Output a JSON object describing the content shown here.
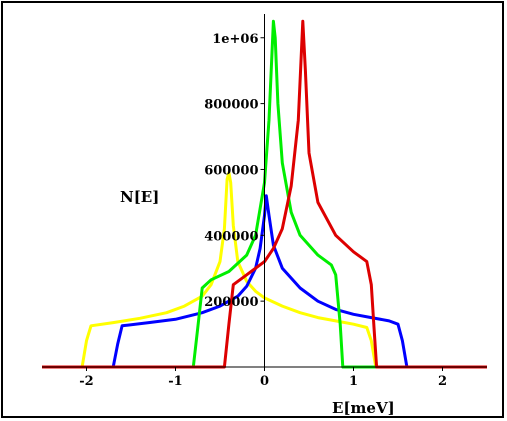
{
  "chart_data": {
    "type": "line",
    "xlabel": "E[meV]",
    "ylabel": "N[E]",
    "xlim": [
      -2.5,
      2.5
    ],
    "ylim": [
      0,
      1060000
    ],
    "x_ticks": [
      {
        "value": -2,
        "label": "-2"
      },
      {
        "value": -1,
        "label": "-1"
      },
      {
        "value": 0,
        "label": "0"
      },
      {
        "value": 1,
        "label": "1"
      },
      {
        "value": 2,
        "label": "2"
      }
    ],
    "y_ticks": [
      {
        "value": 200000,
        "label": "200000"
      },
      {
        "value": 400000,
        "label": "400000"
      },
      {
        "value": 600000,
        "label": "600000"
      },
      {
        "value": 800000,
        "label": "800000"
      },
      {
        "value": 1000000,
        "label": "1e+06"
      }
    ],
    "grid": false,
    "series": [
      {
        "color": "#ffff00",
        "points": [
          [
            -2.5,
            0
          ],
          [
            -2.05,
            0
          ],
          [
            -2.0,
            80000
          ],
          [
            -1.95,
            125000
          ],
          [
            -1.7,
            135000
          ],
          [
            -1.4,
            148000
          ],
          [
            -1.1,
            165000
          ],
          [
            -0.9,
            185000
          ],
          [
            -0.7,
            215000
          ],
          [
            -0.6,
            250000
          ],
          [
            -0.5,
            320000
          ],
          [
            -0.45,
            420000
          ],
          [
            -0.42,
            570000
          ],
          [
            -0.4,
            590000
          ],
          [
            -0.38,
            560000
          ],
          [
            -0.35,
            430000
          ],
          [
            -0.3,
            320000
          ],
          [
            -0.2,
            260000
          ],
          [
            -0.1,
            230000
          ],
          [
            0.0,
            210000
          ],
          [
            0.2,
            185000
          ],
          [
            0.4,
            165000
          ],
          [
            0.6,
            150000
          ],
          [
            0.8,
            140000
          ],
          [
            1.0,
            130000
          ],
          [
            1.15,
            120000
          ],
          [
            1.2,
            80000
          ],
          [
            1.25,
            0
          ],
          [
            2.5,
            0
          ]
        ]
      },
      {
        "color": "#0000ff",
        "points": [
          [
            -2.5,
            0
          ],
          [
            -1.7,
            0
          ],
          [
            -1.65,
            70000
          ],
          [
            -1.6,
            125000
          ],
          [
            -1.3,
            135000
          ],
          [
            -1.0,
            145000
          ],
          [
            -0.7,
            165000
          ],
          [
            -0.5,
            185000
          ],
          [
            -0.3,
            215000
          ],
          [
            -0.2,
            245000
          ],
          [
            -0.1,
            300000
          ],
          [
            -0.05,
            360000
          ],
          [
            0.0,
            460000
          ],
          [
            0.02,
            520000
          ],
          [
            0.05,
            460000
          ],
          [
            0.1,
            370000
          ],
          [
            0.2,
            300000
          ],
          [
            0.4,
            240000
          ],
          [
            0.6,
            200000
          ],
          [
            0.8,
            175000
          ],
          [
            1.0,
            160000
          ],
          [
            1.2,
            150000
          ],
          [
            1.4,
            140000
          ],
          [
            1.5,
            130000
          ],
          [
            1.55,
            80000
          ],
          [
            1.6,
            0
          ],
          [
            2.5,
            0
          ]
        ]
      },
      {
        "color": "#00ee00",
        "points": [
          [
            -2.5,
            0
          ],
          [
            -0.8,
            0
          ],
          [
            -0.75,
            120000
          ],
          [
            -0.7,
            240000
          ],
          [
            -0.6,
            265000
          ],
          [
            -0.4,
            290000
          ],
          [
            -0.2,
            340000
          ],
          [
            -0.1,
            400000
          ],
          [
            0.0,
            560000
          ],
          [
            0.05,
            750000
          ],
          [
            0.1,
            1050000
          ],
          [
            0.12,
            1000000
          ],
          [
            0.15,
            800000
          ],
          [
            0.2,
            620000
          ],
          [
            0.3,
            470000
          ],
          [
            0.4,
            400000
          ],
          [
            0.6,
            340000
          ],
          [
            0.75,
            310000
          ],
          [
            0.8,
            280000
          ],
          [
            0.85,
            130000
          ],
          [
            0.88,
            0
          ],
          [
            2.5,
            0
          ]
        ]
      },
      {
        "color": "#dd0000",
        "points": [
          [
            -2.5,
            0
          ],
          [
            -0.45,
            0
          ],
          [
            -0.4,
            130000
          ],
          [
            -0.35,
            250000
          ],
          [
            -0.2,
            280000
          ],
          [
            0.0,
            320000
          ],
          [
            0.1,
            360000
          ],
          [
            0.2,
            420000
          ],
          [
            0.3,
            550000
          ],
          [
            0.38,
            750000
          ],
          [
            0.43,
            1050000
          ],
          [
            0.46,
            900000
          ],
          [
            0.5,
            650000
          ],
          [
            0.6,
            500000
          ],
          [
            0.8,
            400000
          ],
          [
            1.0,
            350000
          ],
          [
            1.15,
            320000
          ],
          [
            1.2,
            250000
          ],
          [
            1.23,
            120000
          ],
          [
            1.26,
            0
          ],
          [
            2.5,
            0
          ]
        ]
      }
    ]
  }
}
